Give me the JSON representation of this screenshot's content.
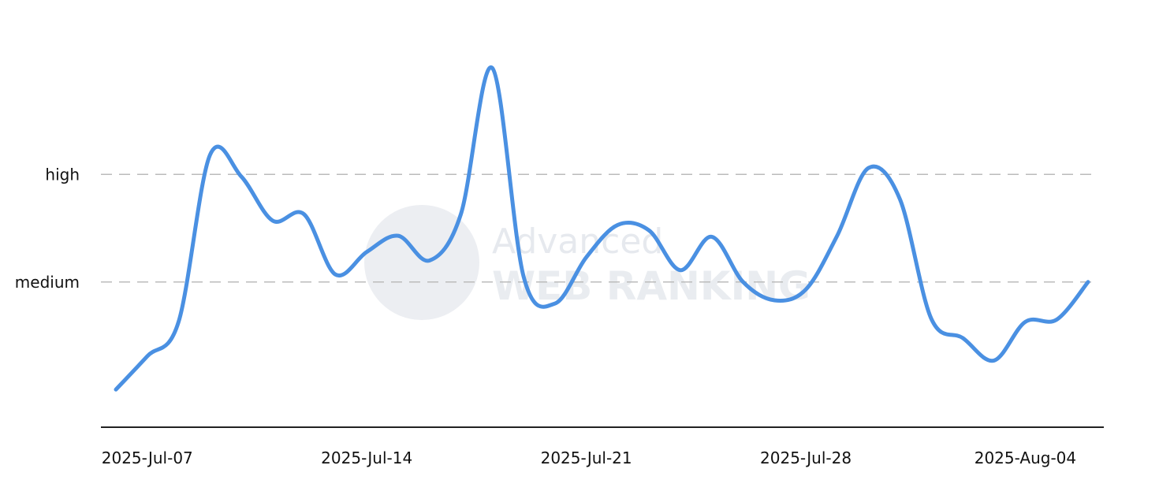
{
  "watermark": {
    "line1": "Advanced",
    "line2": "WEB RANKING"
  },
  "colors": {
    "line": "#4a90e2",
    "grid": "#bbbbbb",
    "axis": "#222222",
    "watermark": "#e6e9ee"
  },
  "chart_data": {
    "type": "line",
    "title": "",
    "xlabel": "",
    "ylabel": "",
    "x_start": "2025-07-06",
    "x_end": "2025-08-06",
    "xlim": [
      "2025-07-06",
      "2025-08-06"
    ],
    "ylim": [
      0,
      3.4
    ],
    "grid": {
      "horizontal": true,
      "style": "dashed"
    },
    "x_ticks": [
      {
        "date": "2025-07-07",
        "label": "2025-Jul-07"
      },
      {
        "date": "2025-07-14",
        "label": "2025-Jul-14"
      },
      {
        "date": "2025-07-21",
        "label": "2025-Jul-21"
      },
      {
        "date": "2025-07-28",
        "label": "2025-Jul-28"
      },
      {
        "date": "2025-08-04",
        "label": "2025-Aug-04"
      }
    ],
    "y_ticks": [
      {
        "value": 1.35,
        "label": "medium"
      },
      {
        "value": 2.35,
        "label": "high"
      }
    ],
    "series": [
      {
        "values": [
          {
            "x": "2025-07-06",
            "y": 0.35
          },
          {
            "x": "2025-07-07",
            "y": 0.66
          },
          {
            "x": "2025-07-08",
            "y": 0.98
          },
          {
            "x": "2025-07-09",
            "y": 2.53
          },
          {
            "x": "2025-07-10",
            "y": 2.33
          },
          {
            "x": "2025-07-11",
            "y": 1.92
          },
          {
            "x": "2025-07-12",
            "y": 1.98
          },
          {
            "x": "2025-07-13",
            "y": 1.42
          },
          {
            "x": "2025-07-14",
            "y": 1.63
          },
          {
            "x": "2025-07-15",
            "y": 1.78
          },
          {
            "x": "2025-07-16",
            "y": 1.55
          },
          {
            "x": "2025-07-17",
            "y": 1.98
          },
          {
            "x": "2025-07-18",
            "y": 3.34
          },
          {
            "x": "2025-07-19",
            "y": 1.4
          },
          {
            "x": "2025-07-20",
            "y": 1.15
          },
          {
            "x": "2025-07-21",
            "y": 1.58
          },
          {
            "x": "2025-07-22",
            "y": 1.88
          },
          {
            "x": "2025-07-23",
            "y": 1.83
          },
          {
            "x": "2025-07-24",
            "y": 1.46
          },
          {
            "x": "2025-07-25",
            "y": 1.77
          },
          {
            "x": "2025-07-26",
            "y": 1.35
          },
          {
            "x": "2025-07-27",
            "y": 1.18
          },
          {
            "x": "2025-07-28",
            "y": 1.28
          },
          {
            "x": "2025-07-29",
            "y": 1.78
          },
          {
            "x": "2025-07-30",
            "y": 2.41
          },
          {
            "x": "2025-07-31",
            "y": 2.12
          },
          {
            "x": "2025-08-01",
            "y": 1.01
          },
          {
            "x": "2025-08-02",
            "y": 0.83
          },
          {
            "x": "2025-08-03",
            "y": 0.62
          },
          {
            "x": "2025-08-04",
            "y": 0.98
          },
          {
            "x": "2025-08-05",
            "y": 1.0
          },
          {
            "x": "2025-08-06",
            "y": 1.35
          }
        ]
      }
    ]
  }
}
